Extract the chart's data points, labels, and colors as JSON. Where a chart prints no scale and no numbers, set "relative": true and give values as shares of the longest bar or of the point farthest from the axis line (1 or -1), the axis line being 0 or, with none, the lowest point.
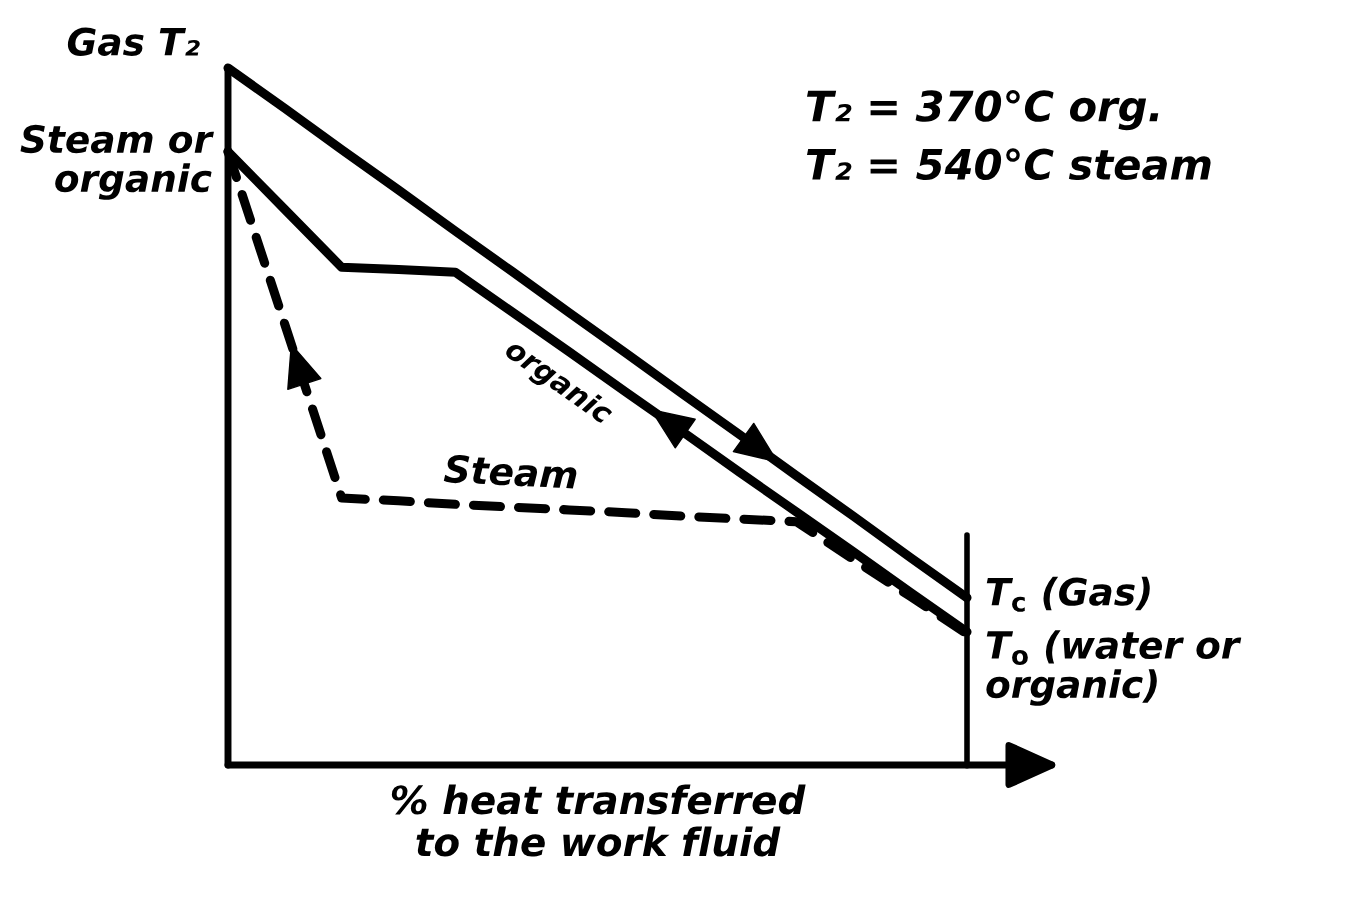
{
  "chart_data": {
    "type": "line",
    "relative": true,
    "tick_labels": false,
    "xlabel": "% heat transferred\nto the work fluid",
    "categories": [
      null,
      null,
      null,
      null,
      null,
      null,
      null,
      null,
      null,
      null,
      null,
      null,
      null,
      null
    ],
    "series": [
      {
        "color": "#000000",
        "line_style": "solid",
        "values": [
          1.0,
          0.942,
          0.883,
          0.825,
          0.766,
          0.708,
          0.649,
          0.591,
          0.532,
          0.474,
          0.415,
          0.357,
          0.298,
          0.24
        ]
      },
      {
        "name": "organic",
        "color": "#000000",
        "line_style": "solid",
        "values": [
          0.88,
          0.797,
          0.714,
          0.711,
          0.707,
          0.65,
          0.593,
          0.535,
          0.478,
          0.42,
          0.363,
          0.306,
          0.248,
          0.191
        ]
      },
      {
        "name": "Steam",
        "color": "#000000",
        "line_style": "dashed",
        "values": [
          0.88,
          0.632,
          0.383,
          0.379,
          0.374,
          0.37,
          0.366,
          0.362,
          0.357,
          0.353,
          0.349,
          0.295,
          0.242,
          0.188
        ]
      }
    ],
    "annotations": [
      "Gas T₂",
      "Steam or\norganic",
      "T$_{c}$ (Gas)",
      "T$_{o}$ (water or\norganic)",
      "T₂ = 370°C org.",
      "T₂ = 540°C steam"
    ]
  }
}
